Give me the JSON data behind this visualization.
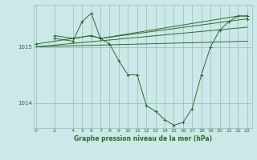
{
  "background_color": "#cce8e8",
  "plot_bg_color": "#cce8e8",
  "line_color": "#2d6b2d",
  "grid_color": "#99bbbb",
  "xlabel": "Graphe pression niveau de la mer (hPa)",
  "yticks": [
    1014,
    1015
  ],
  "xticks": [
    0,
    2,
    4,
    5,
    6,
    7,
    8,
    9,
    10,
    11,
    12,
    13,
    14,
    15,
    16,
    17,
    18,
    19,
    20,
    21,
    22,
    23
  ],
  "xlim": [
    -0.3,
    23.5
  ],
  "ylim": [
    1013.55,
    1015.75
  ],
  "series": [
    {
      "x": [
        2,
        4,
        5,
        6,
        7,
        8,
        9,
        10,
        11,
        12,
        13,
        14,
        15,
        16,
        17,
        18,
        19,
        20,
        21,
        22,
        23
      ],
      "y": [
        1015.15,
        1015.1,
        1015.45,
        1015.6,
        1015.15,
        1015.05,
        1014.75,
        1014.5,
        1014.5,
        1013.95,
        1013.85,
        1013.7,
        1013.6,
        1013.65,
        1013.9,
        1014.5,
        1015.0,
        1015.3,
        1015.45,
        1015.55,
        1015.55
      ],
      "marker": true
    },
    {
      "x": [
        2,
        4,
        6,
        7,
        22,
        23
      ],
      "y": [
        1015.2,
        1015.15,
        1015.2,
        1015.15,
        1015.55,
        1015.55
      ],
      "marker": true
    },
    {
      "x": [
        0,
        6,
        7,
        23
      ],
      "y": [
        1015.05,
        1015.2,
        1015.15,
        1015.5
      ],
      "marker": true
    },
    {
      "x": [
        0,
        23
      ],
      "y": [
        1015.0,
        1015.1
      ],
      "marker": false
    },
    {
      "x": [
        0,
        23
      ],
      "y": [
        1015.0,
        1015.35
      ],
      "marker": false
    }
  ]
}
